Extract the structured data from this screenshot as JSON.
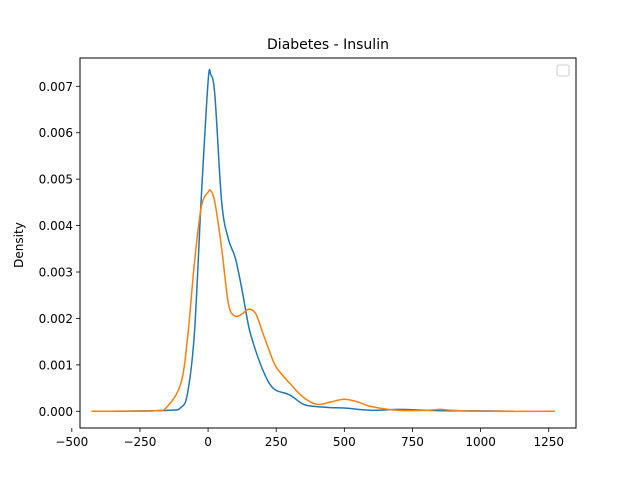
{
  "chart_data": {
    "type": "line",
    "title": "Diabetes - Insulin",
    "xlabel": "",
    "ylabel": "Density",
    "xlim": [
      -470,
      1350
    ],
    "ylim": [
      -0.00036,
      0.00761
    ],
    "xticks": [
      -500,
      -250,
      0,
      250,
      500,
      750,
      1000,
      1250
    ],
    "xtick_labels": [
      "−500",
      "−250",
      "0",
      "250",
      "500",
      "750",
      "1000",
      "1250"
    ],
    "yticks": [
      0.0,
      0.001,
      0.002,
      0.003,
      0.004,
      0.005,
      0.006,
      0.007
    ],
    "ytick_labels": [
      "0.000",
      "0.001",
      "0.002",
      "0.003",
      "0.004",
      "0.005",
      "0.006",
      "0.007"
    ],
    "grid": false,
    "legend": {
      "location": "upper right",
      "entries": []
    },
    "series": [
      {
        "color": "#1f77b4",
        "x": [
          -380,
          -150,
          -100,
          -75,
          -50,
          -25,
          0,
          10,
          25,
          50,
          75,
          100,
          125,
          150,
          175,
          200,
          225,
          250,
          300,
          350,
          400,
          450,
          500,
          600,
          700,
          800,
          900,
          1000,
          1120
        ],
        "y": [
          0.0,
          2e-05,
          8e-05,
          0.0004,
          0.0017,
          0.0046,
          0.0071,
          0.00725,
          0.0068,
          0.0045,
          0.0037,
          0.0033,
          0.0026,
          0.0018,
          0.0013,
          0.0009,
          0.0006,
          0.00045,
          0.00035,
          0.00015,
          0.0001,
          8e-05,
          7e-05,
          2e-05,
          4e-05,
          2e-05,
          1e-05,
          1e-05,
          0.0
        ]
      },
      {
        "color": "#ff7f0e",
        "x": [
          -425,
          -200,
          -150,
          -100,
          -75,
          -50,
          -25,
          0,
          10,
          25,
          50,
          75,
          100,
          125,
          150,
          175,
          200,
          225,
          250,
          300,
          350,
          400,
          450,
          500,
          550,
          600,
          700,
          800,
          850,
          900,
          1000,
          1270
        ],
        "y": [
          0.0,
          1e-05,
          0.0001,
          0.0006,
          0.0016,
          0.0032,
          0.0044,
          0.00472,
          0.00475,
          0.0045,
          0.0035,
          0.0023,
          0.00205,
          0.0021,
          0.0022,
          0.0021,
          0.0017,
          0.0013,
          0.00095,
          0.0006,
          0.0003,
          0.00015,
          0.0002,
          0.00026,
          0.0002,
          0.0001,
          2e-05,
          2e-05,
          4e-05,
          2e-05,
          0.0,
          0.0
        ]
      }
    ]
  }
}
